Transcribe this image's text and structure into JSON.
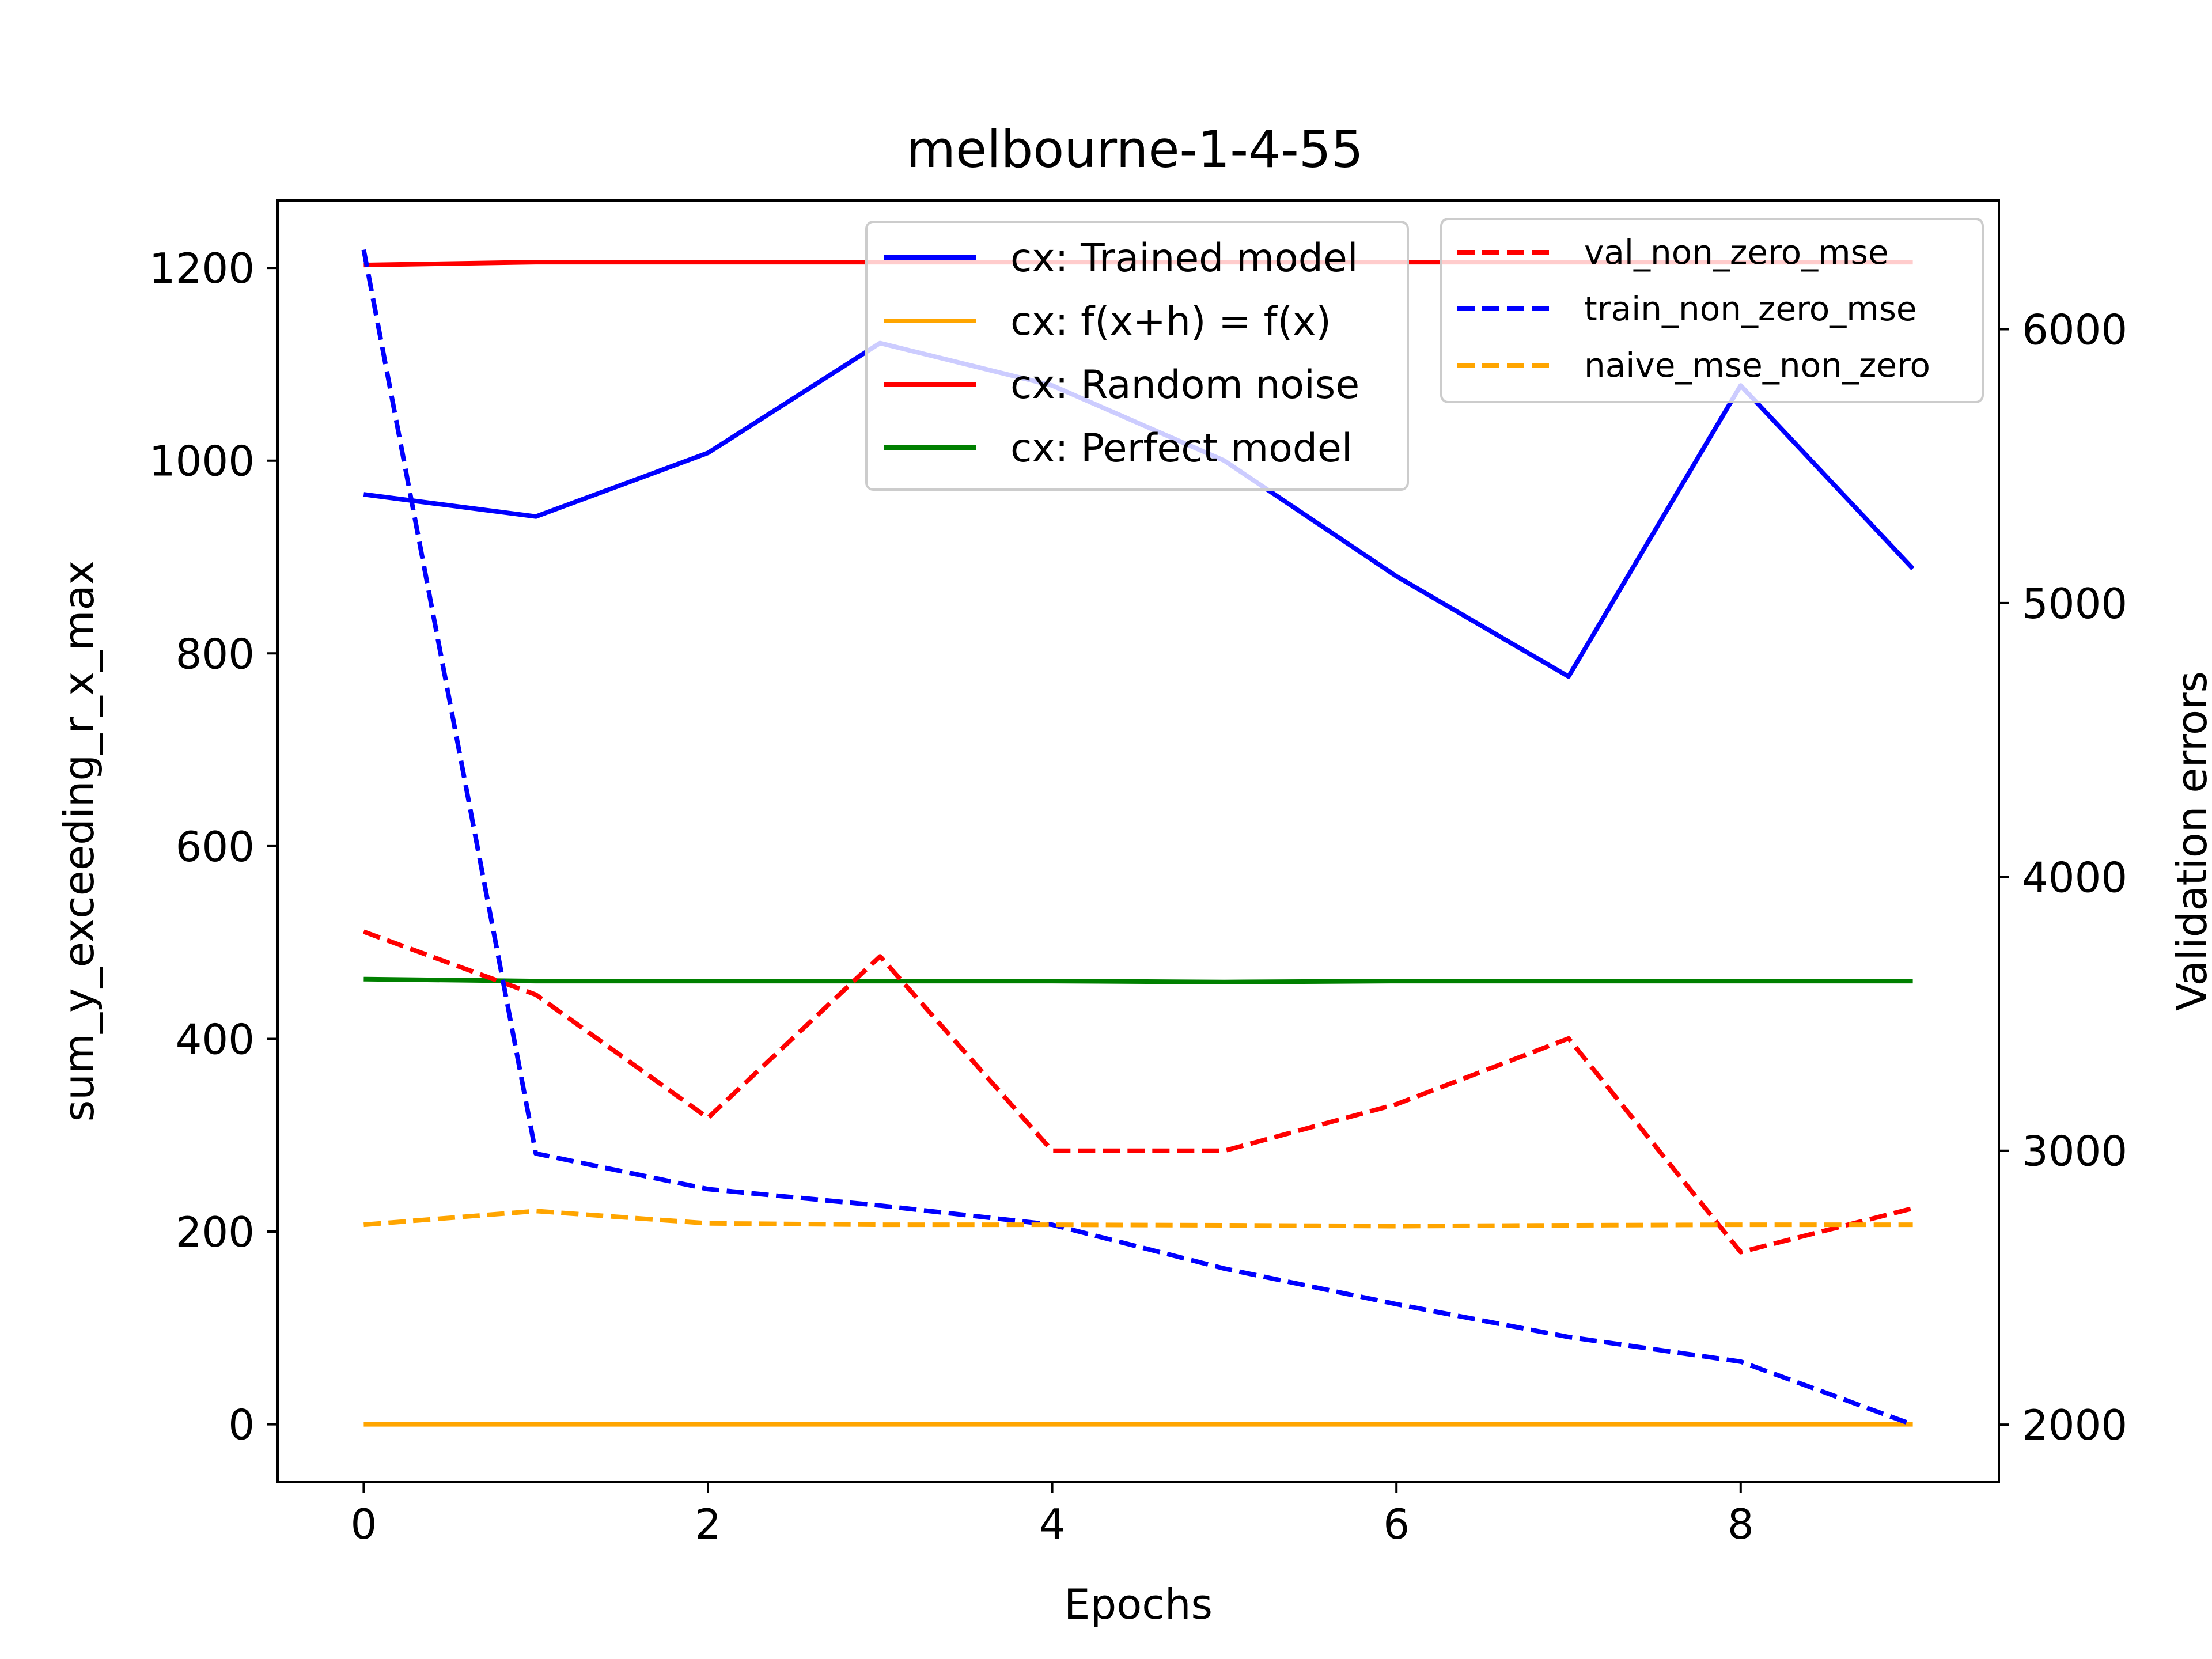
{
  "chart_data": {
    "type": "line",
    "title": "melbourne-1-4-55",
    "xlabel": "Epochs",
    "ylabel_left": "sum_y_exceeding_r_x_max",
    "ylabel_right": "Validation errors",
    "x": [
      0,
      1,
      2,
      3,
      4,
      5,
      6,
      7,
      8,
      9
    ],
    "xlim": [
      -0.5,
      9.5
    ],
    "ylim_left": [
      -60,
      1270
    ],
    "ylim_right": [
      1790,
      6470
    ],
    "x_ticks": [
      "0",
      "2",
      "4",
      "6",
      "8"
    ],
    "y_ticks_left": [
      "0",
      "200",
      "400",
      "600",
      "800",
      "1000",
      "1200"
    ],
    "y_ticks_right": [
      "2000",
      "3000",
      "4000",
      "5000",
      "6000"
    ],
    "grid": false,
    "legend_left_position": "upper-center",
    "legend_right_position": "upper-right",
    "series": [
      {
        "name": "cx: Trained model",
        "axis": "left",
        "color": "#0000ff",
        "style": "solid",
        "values": [
          965,
          942,
          1008,
          1122,
          1078,
          1000,
          880,
          776,
          1078,
          888
        ]
      },
      {
        "name": "cx: f(x+h) = f(x)",
        "axis": "left",
        "color": "#ffa500",
        "style": "solid",
        "values": [
          0,
          0,
          0,
          0,
          0,
          0,
          0,
          0,
          0,
          0
        ]
      },
      {
        "name": "cx: Random noise",
        "axis": "left",
        "color": "#ff0000",
        "style": "solid",
        "values": [
          1203,
          1206,
          1206,
          1206,
          1206,
          1206,
          1206,
          1206,
          1206,
          1206
        ]
      },
      {
        "name": "cx: Perfect model",
        "axis": "left",
        "color": "#008000",
        "style": "solid",
        "values": [
          462,
          460,
          460,
          460,
          460,
          459,
          460,
          460,
          460,
          460
        ]
      },
      {
        "name": "val_non_zero_mse",
        "axis": "right",
        "color": "#ff0000",
        "style": "dashed",
        "values": [
          3800,
          3570,
          3120,
          3710,
          3000,
          3000,
          3170,
          3410,
          2630,
          2790
        ]
      },
      {
        "name": "train_non_zero_mse",
        "axis": "right",
        "color": "#0000ff",
        "style": "dashed",
        "values": [
          6290,
          2990,
          2860,
          2800,
          2730,
          2570,
          2440,
          2320,
          2230,
          2000
        ]
      },
      {
        "name": "naive_mse_non_zero",
        "axis": "right",
        "color": "#ffa500",
        "style": "dashed",
        "values": [
          2730,
          2780,
          2735,
          2730,
          2730,
          2728,
          2725,
          2728,
          2730,
          2730
        ]
      }
    ]
  }
}
